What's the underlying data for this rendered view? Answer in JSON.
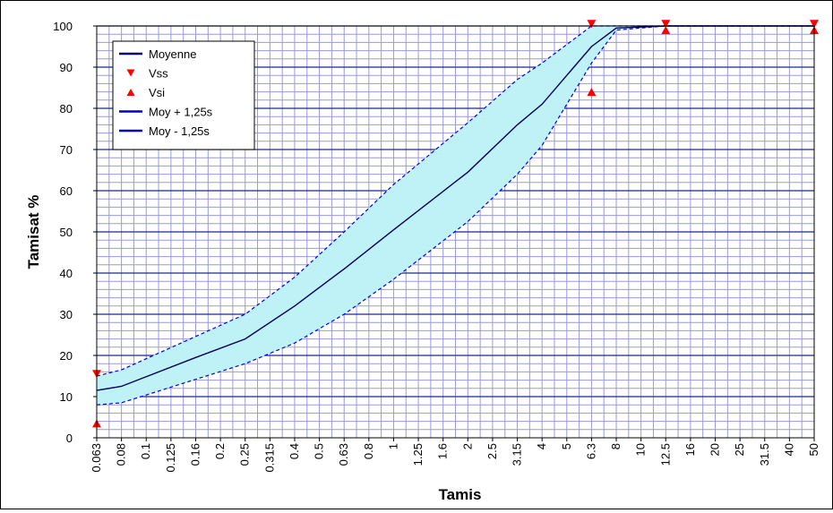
{
  "chart_data": {
    "type": "line",
    "xlabel": "Tamis",
    "ylabel": "Tamisat %",
    "ylim": [
      0,
      100
    ],
    "yticks": [
      "0",
      "10",
      "20",
      "30",
      "40",
      "50",
      "60",
      "70",
      "80",
      "90",
      "100"
    ],
    "x": [
      "0.063",
      "0.08",
      "0.1",
      "0.125",
      "0.16",
      "0.2",
      "0.25",
      "0.315",
      "0.4",
      "0.5",
      "0.63",
      "0.8",
      "1",
      "1.25",
      "1.6",
      "2",
      "2.5",
      "3.15",
      "4",
      "5",
      "6.3",
      "8",
      "10",
      "12.5",
      "16",
      "20",
      "25",
      "31.5",
      "40",
      "50"
    ],
    "grid": true,
    "legend_position": "top-left",
    "legend": [
      {
        "label": "Moyenne",
        "kind": "line",
        "color": "#000066"
      },
      {
        "label": "Vss",
        "kind": "marker-down",
        "color": "#ff0000"
      },
      {
        "label": "Vsi",
        "kind": "marker-up",
        "color": "#ff0000"
      },
      {
        "label": "Moy + 1,25s",
        "kind": "line",
        "color": "#0000cc"
      },
      {
        "label": "Moy - 1,25s",
        "kind": "line",
        "color": "#0000cc"
      }
    ],
    "series": [
      {
        "name": "Moyenne",
        "x": [
          "0.063",
          "0.08",
          "0.16",
          "0.25",
          "0.4",
          "0.5",
          "0.63",
          "1",
          "2",
          "3.15",
          "4",
          "6.3",
          "8",
          "12.5",
          "50"
        ],
        "values": [
          11.5,
          12.5,
          19.5,
          24,
          32,
          36.5,
          41,
          50.5,
          64.5,
          76,
          81,
          95,
          99.5,
          100,
          100
        ]
      },
      {
        "name": "Moy + 1,25s",
        "x": [
          "0.063",
          "0.08",
          "0.25",
          "0.4",
          "0.63",
          "1",
          "2",
          "3.15",
          "4",
          "6.3",
          "8",
          "12.5",
          "50"
        ],
        "values": [
          15,
          16.5,
          30,
          39,
          50,
          61.5,
          76.5,
          87,
          91,
          100,
          100,
          100,
          100
        ]
      },
      {
        "name": "Moy - 1,25s",
        "x": [
          "0.063",
          "0.08",
          "0.25",
          "0.4",
          "0.63",
          "1",
          "2",
          "3.15",
          "4",
          "6.3",
          "8",
          "12.5",
          "50"
        ],
        "values": [
          8,
          8.5,
          18,
          23,
          30,
          38.5,
          52.5,
          64,
          71,
          91,
          99,
          100,
          100
        ]
      },
      {
        "name": "Vss",
        "x": [
          "0.063",
          "6.3",
          "12.5",
          "50"
        ],
        "values": [
          15.5,
          100.5,
          100.5,
          100.5
        ]
      },
      {
        "name": "Vsi",
        "x": [
          "0.063",
          "6.3",
          "12.5",
          "50"
        ],
        "values": [
          3.5,
          84,
          99,
          99
        ]
      }
    ]
  }
}
